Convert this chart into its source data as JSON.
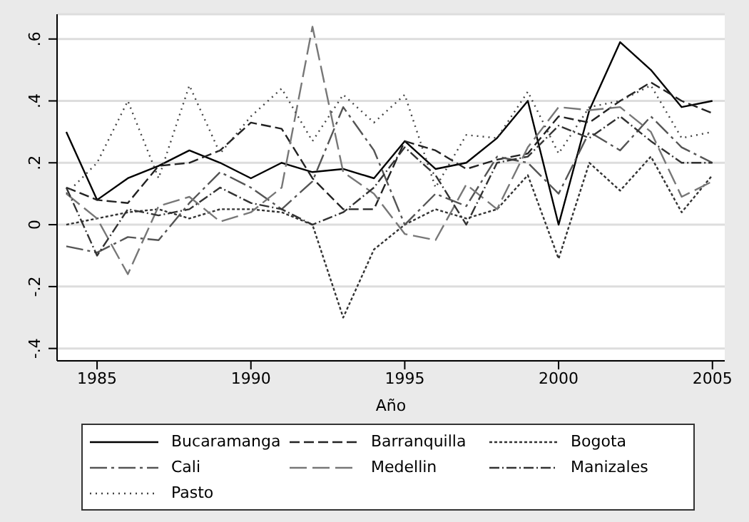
{
  "chart_data": {
    "type": "line",
    "xlabel": "Año",
    "x": [
      1984,
      1985,
      1986,
      1987,
      1988,
      1989,
      1990,
      1991,
      1992,
      1993,
      1994,
      1995,
      1996,
      1997,
      1998,
      1999,
      2000,
      2001,
      2002,
      2003,
      2004,
      2005
    ],
    "series": [
      {
        "name": "Bucaramanga",
        "color": "#000000",
        "line_style": "solid",
        "values": [
          0.3,
          0.08,
          0.15,
          0.19,
          0.24,
          0.2,
          0.15,
          0.2,
          0.17,
          0.18,
          0.15,
          0.27,
          0.18,
          0.2,
          0.28,
          0.4,
          0.0,
          0.37,
          0.59,
          0.5,
          0.38,
          0.4
        ]
      },
      {
        "name": "Barranquilla",
        "color": "#222222",
        "line_style": "dashed",
        "values": [
          0.12,
          0.08,
          0.07,
          0.19,
          0.2,
          0.24,
          0.33,
          0.31,
          0.15,
          0.05,
          0.05,
          0.27,
          0.24,
          0.18,
          0.21,
          0.23,
          0.35,
          0.33,
          0.4,
          0.46,
          0.4,
          0.36
        ]
      },
      {
        "name": "Bogota",
        "color": "#333333",
        "line_style": "shortdash",
        "values": [
          0.0,
          0.02,
          0.04,
          0.05,
          0.02,
          0.05,
          0.05,
          0.04,
          0.0,
          -0.3,
          -0.08,
          0.0,
          0.05,
          0.02,
          0.05,
          0.16,
          -0.11,
          0.2,
          0.11,
          0.22,
          0.04,
          0.16
        ]
      },
      {
        "name": "Cali",
        "color": "#555555",
        "line_style": "longdashdot",
        "values": [
          -0.07,
          -0.09,
          -0.04,
          -0.05,
          0.07,
          0.17,
          0.12,
          0.05,
          0.14,
          0.38,
          0.24,
          0.0,
          0.1,
          0.06,
          0.22,
          0.2,
          0.1,
          0.3,
          0.24,
          0.35,
          0.25,
          0.2
        ]
      },
      {
        "name": "Medellin",
        "color": "#777777",
        "line_style": "longdash",
        "values": [
          0.1,
          0.02,
          -0.16,
          0.06,
          0.09,
          0.01,
          0.04,
          0.12,
          0.64,
          0.17,
          0.1,
          -0.03,
          -0.05,
          0.13,
          0.05,
          0.25,
          0.38,
          0.37,
          0.38,
          0.3,
          0.09,
          0.14
        ]
      },
      {
        "name": "Manizales",
        "color": "#333333",
        "line_style": "dashdot",
        "values": [
          0.12,
          -0.1,
          0.05,
          0.03,
          0.05,
          0.12,
          0.07,
          0.05,
          0.0,
          0.04,
          0.12,
          0.25,
          0.16,
          0.0,
          0.2,
          0.22,
          0.32,
          0.28,
          0.35,
          0.27,
          0.2,
          0.2
        ]
      },
      {
        "name": "Pasto",
        "color": "#444444",
        "line_style": "dotted",
        "values": [
          0.1,
          0.2,
          0.4,
          0.15,
          0.45,
          0.23,
          0.35,
          0.44,
          0.27,
          0.42,
          0.33,
          0.42,
          0.12,
          0.29,
          0.28,
          0.43,
          0.23,
          0.38,
          0.4,
          0.45,
          0.28,
          0.3
        ]
      }
    ],
    "xlim": [
      1983.7,
      2005.4
    ],
    "xticks": [
      1985,
      1990,
      1995,
      2000,
      2005
    ],
    "ylim": [
      -0.44,
      0.68
    ],
    "yticks": [
      {
        "value": -0.4,
        "label": "-.4"
      },
      {
        "value": -0.2,
        "label": "-.2"
      },
      {
        "value": 0,
        "label": "0"
      },
      {
        "value": 0.2,
        "label": ".2"
      },
      {
        "value": 0.4,
        "label": ".4"
      },
      {
        "value": 0.6,
        "label": ".6"
      }
    ],
    "grid": "y",
    "legend": "bottom",
    "marker": "none"
  }
}
